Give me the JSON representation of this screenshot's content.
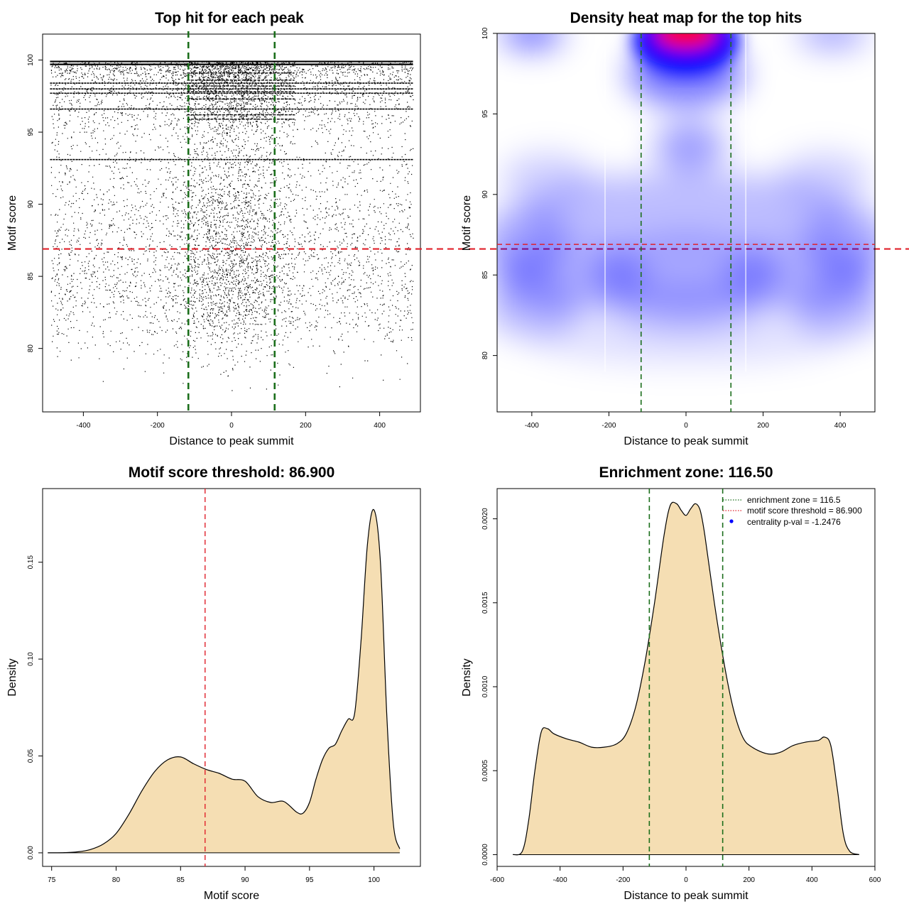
{
  "colors": {
    "threshold_line": "#e0202a",
    "zone_line": "#1b6e1b",
    "density_fill": "#f5deb3",
    "heat_blue": "#0000ff",
    "heat_red": "#ff0000",
    "point": "#000000"
  },
  "chart_data": [
    {
      "id": "top-hits",
      "type": "scatter",
      "title": "Top hit for each peak",
      "xlabel": "Distance to peak summit",
      "ylabel": "Motif score",
      "xlim": [
        -510,
        510
      ],
      "ylim": [
        75.6,
        101.8
      ],
      "x_ticks": [
        -400,
        -200,
        0,
        200,
        400
      ],
      "y_ticks": [
        80,
        85,
        90,
        95,
        100
      ],
      "threshold": 86.9,
      "zone": [
        -116.5,
        116.5
      ],
      "point_x_range": [
        -490,
        490
      ],
      "dense_score_bands": [
        99.9,
        99.7,
        98.4,
        98.0,
        97.7,
        96.6,
        93.1
      ],
      "note": "~20000 points sampled from the motif-score density; individual points are not labeled"
    },
    {
      "id": "heatmap",
      "type": "heatmap",
      "title": "Density heat map for the top hits",
      "xlabel": "Distance to peak summit",
      "ylabel": "Motif score",
      "xlim": [
        -490,
        490
      ],
      "ylim": [
        76.5,
        100
      ],
      "x_ticks": [
        -400,
        -200,
        0,
        200,
        400
      ],
      "y_ticks": [
        80,
        85,
        90,
        95,
        100
      ],
      "threshold": 86.9,
      "zone": [
        -116.5,
        116.5
      ],
      "color_scale": [
        "white",
        "blue",
        "red"
      ],
      "hotspot": {
        "x": 0,
        "y": 100
      }
    },
    {
      "id": "score-density",
      "type": "area",
      "title": "Motif score threshold: 86.900",
      "xlabel": "Motif score",
      "ylabel": "Density",
      "xlim": [
        74.3,
        103.6
      ],
      "ylim": [
        -0.007,
        0.188
      ],
      "x_ticks": [
        75,
        80,
        85,
        90,
        95,
        100
      ],
      "y_ticks": [
        0.0,
        0.05,
        0.1,
        0.15
      ],
      "y_tick_labels": [
        "0.00",
        "0.05",
        "0.10",
        "0.15"
      ],
      "threshold": 86.9,
      "x": [
        74.7,
        76,
        77,
        78,
        79,
        80,
        81,
        82,
        83,
        84,
        85,
        86,
        87,
        88,
        89,
        90,
        91,
        92,
        93,
        94,
        94.5,
        95,
        95.5,
        96,
        96.5,
        97,
        97.5,
        98,
        98.5,
        99,
        99.5,
        100,
        100.5,
        101,
        101.5,
        102
      ],
      "y": [
        0,
        0.0001,
        0.0005,
        0.0017,
        0.0045,
        0.01,
        0.02,
        0.032,
        0.042,
        0.048,
        0.0495,
        0.046,
        0.043,
        0.041,
        0.038,
        0.037,
        0.029,
        0.026,
        0.0265,
        0.021,
        0.0205,
        0.026,
        0.038,
        0.048,
        0.054,
        0.056,
        0.063,
        0.069,
        0.072,
        0.11,
        0.16,
        0.177,
        0.15,
        0.07,
        0.015,
        0.002
      ]
    },
    {
      "id": "distance-density",
      "type": "area",
      "title": "Enrichment zone: 116.50",
      "xlabel": "Distance to peak summit",
      "ylabel": "Density",
      "xlim": [
        -600,
        600
      ],
      "ylim": [
        -7e-05,
        0.00218
      ],
      "x_ticks": [
        -600,
        -400,
        -200,
        0,
        200,
        400,
        600
      ],
      "y_ticks": [
        0.0,
        0.0005,
        0.001,
        0.0015,
        0.002
      ],
      "y_tick_labels": [
        "0.0000",
        "0.0005",
        "0.0010",
        "0.0015",
        "0.0020"
      ],
      "zone": [
        -116.5,
        116.5
      ],
      "x": [
        -550,
        -520,
        -500,
        -480,
        -460,
        -440,
        -420,
        -380,
        -340,
        -300,
        -260,
        -220,
        -190,
        -160,
        -130,
        -100,
        -70,
        -50,
        -30,
        -15,
        0,
        15,
        30,
        45,
        60,
        90,
        120,
        150,
        180,
        210,
        260,
        300,
        340,
        380,
        420,
        440,
        460,
        480,
        500,
        520,
        550
      ],
      "y": [
        0,
        2e-05,
        0.0002,
        0.0005,
        0.00073,
        0.00075,
        0.00072,
        0.00069,
        0.00067,
        0.00064,
        0.00064,
        0.00066,
        0.00072,
        0.00088,
        0.00115,
        0.0015,
        0.0019,
        0.00208,
        0.00209,
        0.00205,
        0.00202,
        0.00206,
        0.00209,
        0.00205,
        0.0019,
        0.0015,
        0.00115,
        0.00087,
        0.0007,
        0.00064,
        0.0006,
        0.00061,
        0.00065,
        0.00067,
        0.00068,
        0.0007,
        0.00065,
        0.0004,
        0.00012,
        2e-05,
        0
      ],
      "legend": [
        {
          "label": "enrichment zone = 116.5",
          "kind": "dotted-line",
          "color": "#1b6e1b"
        },
        {
          "label": "motif score threshold = 86.900",
          "kind": "dotted-line",
          "color": "#e0202a"
        },
        {
          "label": "centrality p-val = -1.2476",
          "kind": "point",
          "color": "#0000ff"
        }
      ],
      "legend_position": "top-right"
    }
  ]
}
